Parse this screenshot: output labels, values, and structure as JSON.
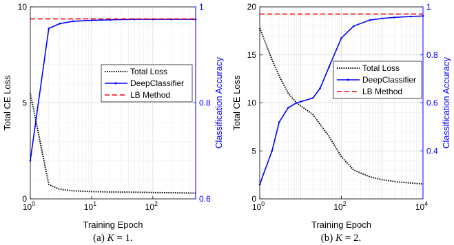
{
  "panels": [
    {
      "caption_prefix": "(a) ",
      "caption_var": "K",
      "caption_eq": " = 1.",
      "chart_data": {
        "type": "line",
        "xlabel": "Training Epoch",
        "ylabel_left": "Total CE Loss",
        "ylabel_right": "Classification Accuracy",
        "x_scale": "log",
        "xlim": [
          1,
          500
        ],
        "ylim_left": [
          0,
          10
        ],
        "ylim_right": [
          0.6,
          1.0
        ],
        "x_ticks": [
          {
            "base": "10",
            "exp": "0",
            "value": 1
          },
          {
            "base": "10",
            "exp": "1",
            "value": 10
          },
          {
            "base": "10",
            "exp": "2",
            "value": 100
          }
        ],
        "y_ticks_left": [
          "0",
          "5",
          "10"
        ],
        "y_ticks_left_values": [
          0,
          5,
          10
        ],
        "y_ticks_right": [
          "0.6",
          "0.8",
          "1"
        ],
        "y_ticks_right_values": [
          0.6,
          0.8,
          1.0
        ],
        "legend_position": "center-right",
        "series": [
          {
            "name": "Total Loss",
            "axis": "left",
            "color": "#000000",
            "style": "dotted",
            "x": [
              1,
              2,
              3,
              5,
              10,
              20,
              50,
              100,
              200,
              500
            ],
            "y": [
              5.5,
              0.75,
              0.5,
              0.42,
              0.38,
              0.36,
              0.35,
              0.33,
              0.32,
              0.3
            ]
          },
          {
            "name": "DeepClassifier",
            "axis": "right",
            "color": "#0000ff",
            "style": "solid",
            "x": [
              1,
              2,
              3,
              5,
              10,
              20,
              50,
              100,
              200,
              500
            ],
            "y": [
              0.68,
              0.955,
              0.965,
              0.97,
              0.972,
              0.973,
              0.974,
              0.974,
              0.974,
              0.974
            ]
          },
          {
            "name": "LB Method",
            "axis": "right",
            "color": "#ff0000",
            "style": "dashed",
            "x": [
              1,
              500
            ],
            "y": [
              0.975,
              0.975
            ]
          }
        ]
      }
    },
    {
      "caption_prefix": "(b) ",
      "caption_var": "K",
      "caption_eq": " = 2.",
      "chart_data": {
        "type": "line",
        "xlabel": "Training Epoch",
        "ylabel_left": "Total CE Loss",
        "ylabel_right": "Classification Accuracy",
        "x_scale": "log",
        "xlim": [
          1,
          10000
        ],
        "ylim_left": [
          0,
          20
        ],
        "ylim_right": [
          0.2,
          1.0
        ],
        "x_ticks": [
          {
            "base": "10",
            "exp": "0",
            "value": 1
          },
          {
            "base": "10",
            "exp": "2",
            "value": 100
          },
          {
            "base": "10",
            "exp": "4",
            "value": 10000
          }
        ],
        "y_ticks_left": [
          "0",
          "5",
          "10",
          "15",
          "20"
        ],
        "y_ticks_left_values": [
          0,
          5,
          10,
          15,
          20
        ],
        "y_ticks_right": [
          "0.4",
          "0.6",
          "0.8",
          "1"
        ],
        "y_ticks_right_values": [
          0.4,
          0.6,
          0.8,
          1.0
        ],
        "legend_position": "center-right",
        "series": [
          {
            "name": "Total Loss",
            "axis": "left",
            "color": "#000000",
            "style": "dotted",
            "x": [
              1,
              2,
              3,
              5,
              8,
              10,
              20,
              50,
              100,
              200,
              500,
              1000,
              2000,
              5000,
              10000
            ],
            "y": [
              17.8,
              14.5,
              12.8,
              11.0,
              10.0,
              9.7,
              8.8,
              6.5,
              4.4,
              3.0,
              2.3,
              2.0,
              1.8,
              1.65,
              1.55
            ]
          },
          {
            "name": "DeepClassifier",
            "axis": "right",
            "color": "#0000ff",
            "style": "solid",
            "x": [
              1,
              2,
              3,
              5,
              8,
              10,
              20,
              30,
              50,
              100,
              200,
              500,
              1000,
              2000,
              5000,
              10000
            ],
            "y": [
              0.26,
              0.4,
              0.52,
              0.58,
              0.6,
              0.605,
              0.62,
              0.66,
              0.75,
              0.87,
              0.92,
              0.945,
              0.952,
              0.956,
              0.96,
              0.962
            ]
          },
          {
            "name": "LB Method",
            "axis": "right",
            "color": "#ff0000",
            "style": "dashed",
            "x": [
              1,
              10000
            ],
            "y": [
              0.97,
              0.97
            ]
          }
        ]
      }
    }
  ]
}
